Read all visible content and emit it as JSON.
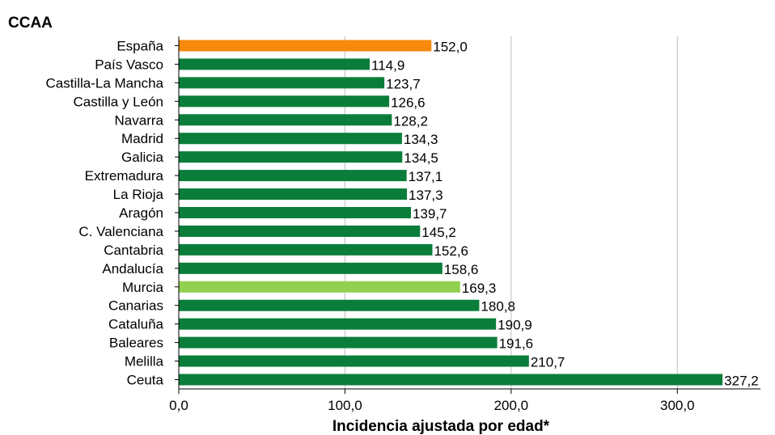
{
  "chart_data": {
    "type": "bar",
    "orientation": "horizontal",
    "title": "CCAA",
    "xlabel": "Incidencia ajustada por edad*",
    "xlim": [
      0,
      350
    ],
    "xticks": [
      0,
      100,
      200,
      300
    ],
    "xtick_labels": [
      "0,0",
      "100,0",
      "200,0",
      "300,0"
    ],
    "grid": "vertical",
    "categories": [
      "España",
      "País Vasco",
      "Castilla-La Mancha",
      "Castilla y León",
      "Navarra",
      "Madrid",
      "Galicia",
      "Extremadura",
      "La Rioja",
      "Aragón",
      "C. Valenciana",
      "Cantabria",
      "Andalucía",
      "Murcia",
      "Canarias",
      "Cataluña",
      "Baleares",
      "Melilla",
      "Ceuta"
    ],
    "values": [
      152.0,
      114.9,
      123.7,
      126.6,
      128.2,
      134.3,
      134.5,
      137.1,
      137.3,
      139.7,
      145.2,
      152.6,
      158.6,
      169.3,
      180.8,
      190.9,
      191.6,
      210.7,
      327.2
    ],
    "value_labels": [
      "152,0",
      "114,9",
      "123,7",
      "126,6",
      "128,2",
      "134,3",
      "134,5",
      "137,1",
      "137,3",
      "139,7",
      "145,2",
      "152,6",
      "158,6",
      "169,3",
      "180,8",
      "190,9",
      "191,6",
      "210,7",
      "327,2"
    ],
    "colors": {
      "default": "#0b7d3a",
      "highlight": {
        "España": "#f7890b",
        "Murcia": "#92d050"
      },
      "grid": "#bfbfbf",
      "axis": "#000000"
    }
  }
}
